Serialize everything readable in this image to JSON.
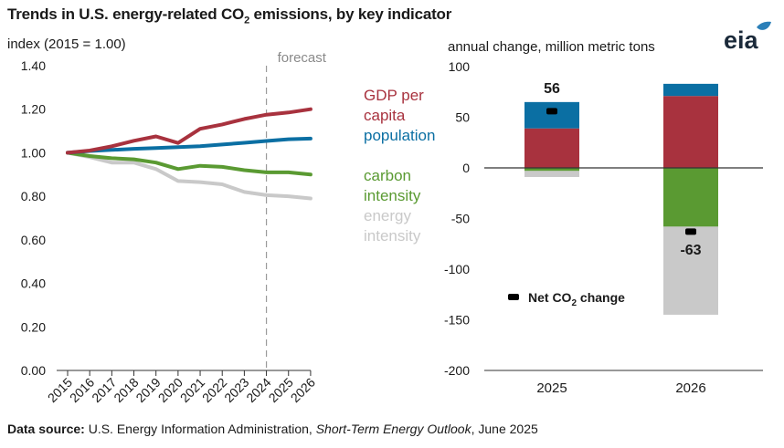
{
  "title": {
    "main": "Trends in U.S. energy-related CO",
    "sub": "2",
    "rest": " emissions, by key indicator"
  },
  "logo_text": "eia",
  "source": {
    "label": "Data source:",
    "text": " U.S. Energy Information Administration, ",
    "publication": "Short-Term Energy Outlook",
    "date": ", June 2025"
  },
  "colors": {
    "gdp": "#a8323e",
    "population": "#0b6fa3",
    "carbon": "#5a9a32",
    "energy": "#c9c9c9",
    "net": "#000000"
  },
  "chart_data": [
    {
      "type": "line",
      "ylabel": "index (2015 = 1.00)",
      "ylim": [
        0,
        1.4
      ],
      "yticks": [
        "0.00",
        "0.20",
        "0.40",
        "0.60",
        "0.80",
        "1.00",
        "1.20",
        "1.40"
      ],
      "x": [
        "2015",
        "2016",
        "2017",
        "2018",
        "2019",
        "2020",
        "2021",
        "2022",
        "2023",
        "2024",
        "2025",
        "2026"
      ],
      "forecast_label": "forecast",
      "forecast_start": "2024",
      "grid": false,
      "series": [
        {
          "key": "gdp",
          "name_lines": [
            "GDP per",
            "capita"
          ],
          "values": [
            1.0,
            1.01,
            1.03,
            1.055,
            1.075,
            1.045,
            1.11,
            1.13,
            1.155,
            1.175,
            1.185,
            1.2
          ]
        },
        {
          "key": "population",
          "name_lines": [
            "population"
          ],
          "values": [
            1.0,
            1.008,
            1.013,
            1.018,
            1.022,
            1.026,
            1.03,
            1.038,
            1.046,
            1.054,
            1.062,
            1.065
          ]
        },
        {
          "key": "carbon",
          "name_lines": [
            "carbon",
            "intensity"
          ],
          "values": [
            1.0,
            0.985,
            0.975,
            0.97,
            0.955,
            0.925,
            0.94,
            0.935,
            0.92,
            0.91,
            0.91,
            0.9
          ]
        },
        {
          "key": "energy",
          "name_lines": [
            "energy",
            "intensity"
          ],
          "values": [
            1.0,
            0.98,
            0.955,
            0.955,
            0.925,
            0.87,
            0.865,
            0.855,
            0.82,
            0.805,
            0.8,
            0.79
          ]
        }
      ]
    },
    {
      "type": "bar",
      "stacked": true,
      "ylabel": "annual change, million metric tons",
      "ylim": [
        -200,
        100
      ],
      "yticks": [
        "100",
        "50",
        "0",
        "-50",
        "-100",
        "-150",
        "-200"
      ],
      "categories": [
        "2025",
        "2026"
      ],
      "series": [
        {
          "key": "gdp",
          "values": [
            39,
            71
          ]
        },
        {
          "key": "population",
          "values": [
            26,
            12
          ]
        },
        {
          "key": "carbon",
          "values": [
            -3,
            -58
          ]
        },
        {
          "key": "energy",
          "values": [
            -6,
            -87
          ]
        }
      ],
      "net": {
        "label_main": "Net CO",
        "label_sub": "2",
        "label_rest": " change",
        "values": [
          56,
          -63
        ],
        "value_labels": [
          "56",
          "-63"
        ]
      },
      "grid": false
    }
  ]
}
